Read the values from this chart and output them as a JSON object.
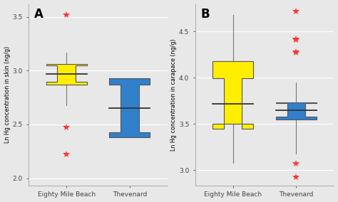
{
  "panel_A": {
    "label": "A",
    "ylabel": "Ln Hg concentration in skin (ng/g)",
    "ylim": [
      1.93,
      3.62
    ],
    "yticks": [
      2.0,
      2.5,
      3.0,
      3.5
    ],
    "groups": [
      "Eighty Mile Beach",
      "Thevenard"
    ],
    "colors": [
      "#FFEE00",
      "#3080CC"
    ],
    "eighty_mile": {
      "q1": 2.87,
      "median": 2.97,
      "q3": 3.06,
      "whislo": 2.68,
      "whishi": 3.17,
      "fliers": [
        3.52,
        2.47,
        2.22
      ]
    },
    "thevenard": {
      "q1": 2.38,
      "median": 2.65,
      "q3": 2.93,
      "whislo": 2.38,
      "whishi": 2.93,
      "fliers": []
    }
  },
  "panel_B": {
    "label": "B",
    "ylabel": "Ln Hg concentration in carapace (ng/g)",
    "ylim": [
      2.83,
      4.8
    ],
    "yticks": [
      3.0,
      3.5,
      4.0,
      4.5
    ],
    "groups": [
      "Eighty Mile Beach",
      "Thevenard"
    ],
    "colors": [
      "#FFEE00",
      "#3080CC"
    ],
    "eighty_mile": {
      "q1": 3.5,
      "median": 3.72,
      "q3": 4.18,
      "whislo": 3.08,
      "whishi": 4.68,
      "fliers": []
    },
    "thevenard": {
      "q1": 3.55,
      "median": 3.65,
      "q3": 3.73,
      "whislo": 3.18,
      "whishi": 3.95,
      "fliers": [
        4.72,
        4.42,
        4.41,
        4.28,
        4.27,
        3.07,
        2.92
      ]
    }
  },
  "bg_color": "#E8E8E8",
  "flier_color": "#FF3333",
  "flier_marker": "*",
  "flier_size": 7
}
